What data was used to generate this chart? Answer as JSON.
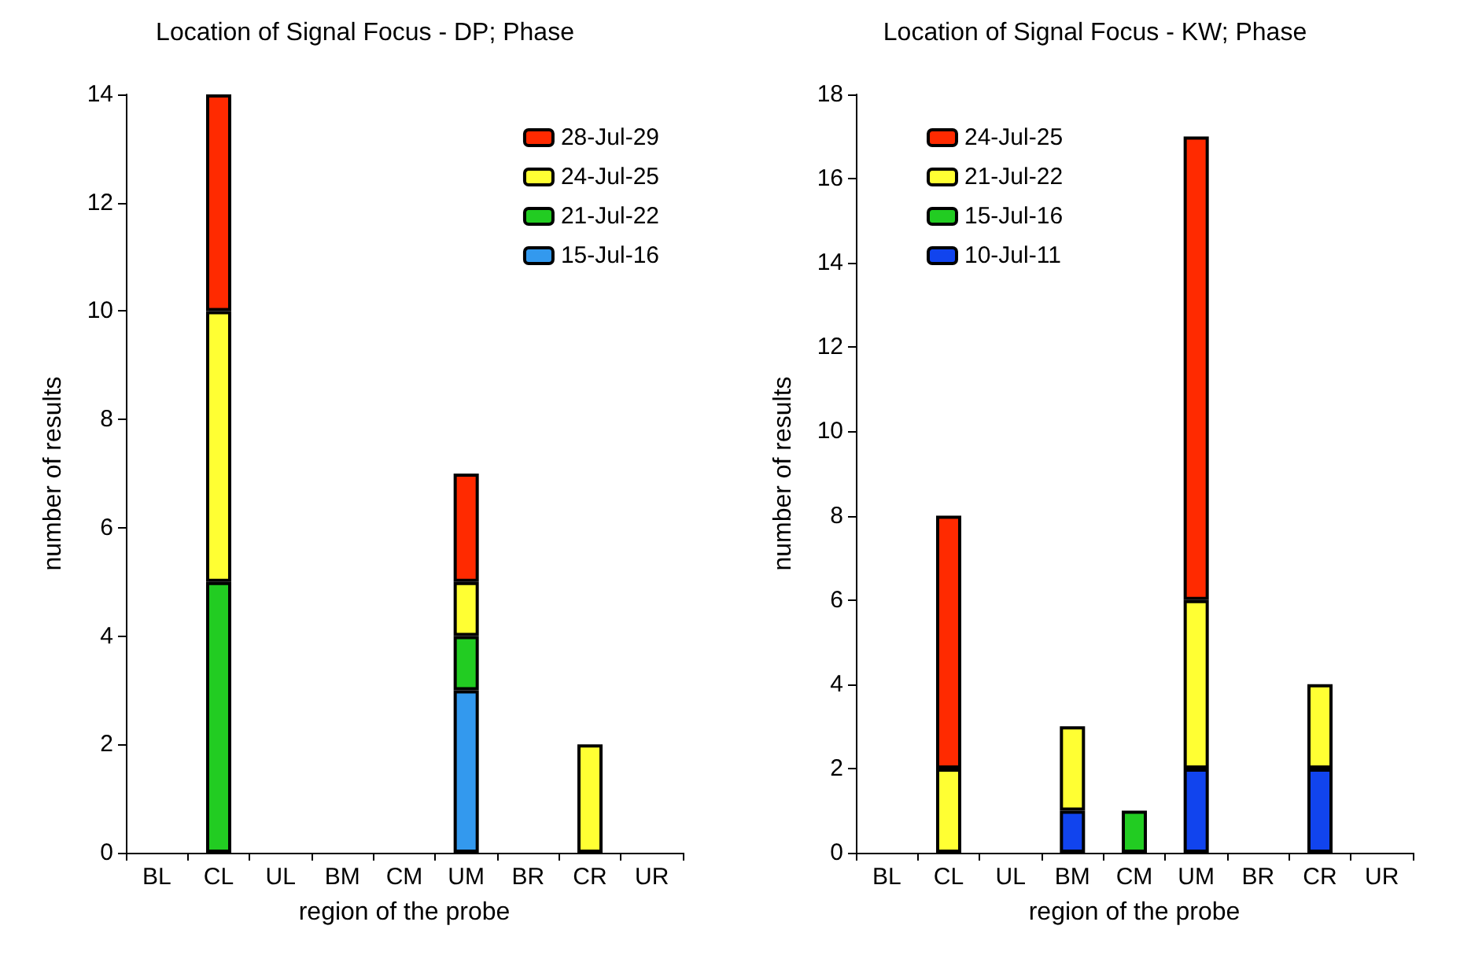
{
  "chart_data": [
    {
      "type": "bar",
      "title": "Location of Signal Focus - DP; Phase",
      "xlabel": "region of the probe",
      "ylabel": "number of results",
      "categories": [
        "BL",
        "CL",
        "UL",
        "BM",
        "CM",
        "UM",
        "BR",
        "CR",
        "UR"
      ],
      "stacked": true,
      "ylim": [
        0,
        14
      ],
      "yticks": [
        0,
        2,
        4,
        6,
        8,
        10,
        12,
        14
      ],
      "grid": false,
      "legend": "top right",
      "series": [
        {
          "name": "15-Jul-16",
          "color": "#3399ee",
          "values": [
            null,
            null,
            null,
            null,
            null,
            3,
            null,
            null,
            null
          ]
        },
        {
          "name": "21-Jul-22",
          "color": "#22cc22",
          "values": [
            null,
            5,
            null,
            null,
            null,
            1,
            null,
            null,
            null
          ]
        },
        {
          "name": "24-Jul-25",
          "color": "#ffff33",
          "values": [
            null,
            5,
            null,
            null,
            null,
            1,
            null,
            2,
            null
          ]
        },
        {
          "name": "28-Jul-29",
          "color": "#ff2a00",
          "values": [
            null,
            4,
            null,
            null,
            null,
            2,
            null,
            null,
            null
          ]
        }
      ]
    },
    {
      "type": "bar",
      "title": "Location of Signal Focus - KW; Phase",
      "xlabel": "region of the probe",
      "ylabel": "number of results",
      "categories": [
        "BL",
        "CL",
        "UL",
        "BM",
        "CM",
        "UM",
        "BR",
        "CR",
        "UR"
      ],
      "stacked": true,
      "ylim": [
        0,
        18
      ],
      "yticks": [
        0,
        2,
        4,
        6,
        8,
        10,
        12,
        14,
        16,
        18
      ],
      "grid": false,
      "legend": "top left",
      "series": [
        {
          "name": "10-Jul-11",
          "color": "#1144ee",
          "values": [
            null,
            null,
            null,
            1,
            null,
            2,
            null,
            2,
            null
          ]
        },
        {
          "name": "15-Jul-16",
          "color": "#22cc22",
          "values": [
            null,
            null,
            null,
            null,
            1,
            null,
            null,
            null,
            null
          ]
        },
        {
          "name": "21-Jul-22",
          "color": "#ffff33",
          "values": [
            null,
            2,
            null,
            2,
            null,
            4,
            null,
            2,
            null
          ]
        },
        {
          "name": "24-Jul-25",
          "color": "#ff2a00",
          "values": [
            null,
            6,
            null,
            null,
            null,
            11,
            null,
            null,
            null
          ]
        }
      ]
    }
  ]
}
